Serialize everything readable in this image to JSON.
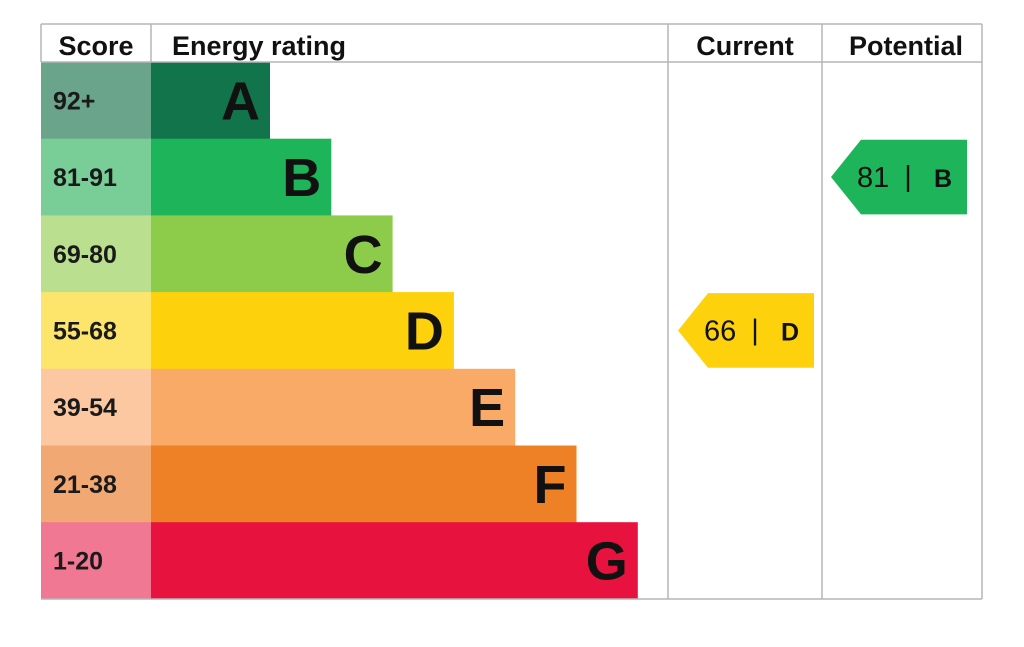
{
  "chart_data": {
    "type": "table",
    "headers": {
      "score": "Score",
      "energy_rating": "Energy rating",
      "current": "Current",
      "potential": "Potential"
    },
    "bands": [
      {
        "score": "92+",
        "letter": "A",
        "color": "#12744a",
        "score_bg": "#6aa58b"
      },
      {
        "score": "81-91",
        "letter": "B",
        "color": "#1db45a",
        "score_bg": "#79ce97"
      },
      {
        "score": "69-80",
        "letter": "C",
        "color": "#8dcc4a",
        "score_bg": "#badf8e"
      },
      {
        "score": "55-68",
        "letter": "D",
        "color": "#fdd20d",
        "score_bg": "#fde46b"
      },
      {
        "score": "39-54",
        "letter": "E",
        "color": "#f9aa67",
        "score_bg": "#fbc8a2"
      },
      {
        "score": "21-38",
        "letter": "F",
        "color": "#ee8125",
        "score_bg": "#f2a872"
      },
      {
        "score": "1-20",
        "letter": "G",
        "color": "#e8123e",
        "score_bg": "#f17892"
      }
    ],
    "current": {
      "value": "66",
      "separator": "|",
      "letter": "D",
      "color": "#fdd20d"
    },
    "potential": {
      "value": "81",
      "separator": "|",
      "letter": "B",
      "color": "#1db45a"
    }
  }
}
